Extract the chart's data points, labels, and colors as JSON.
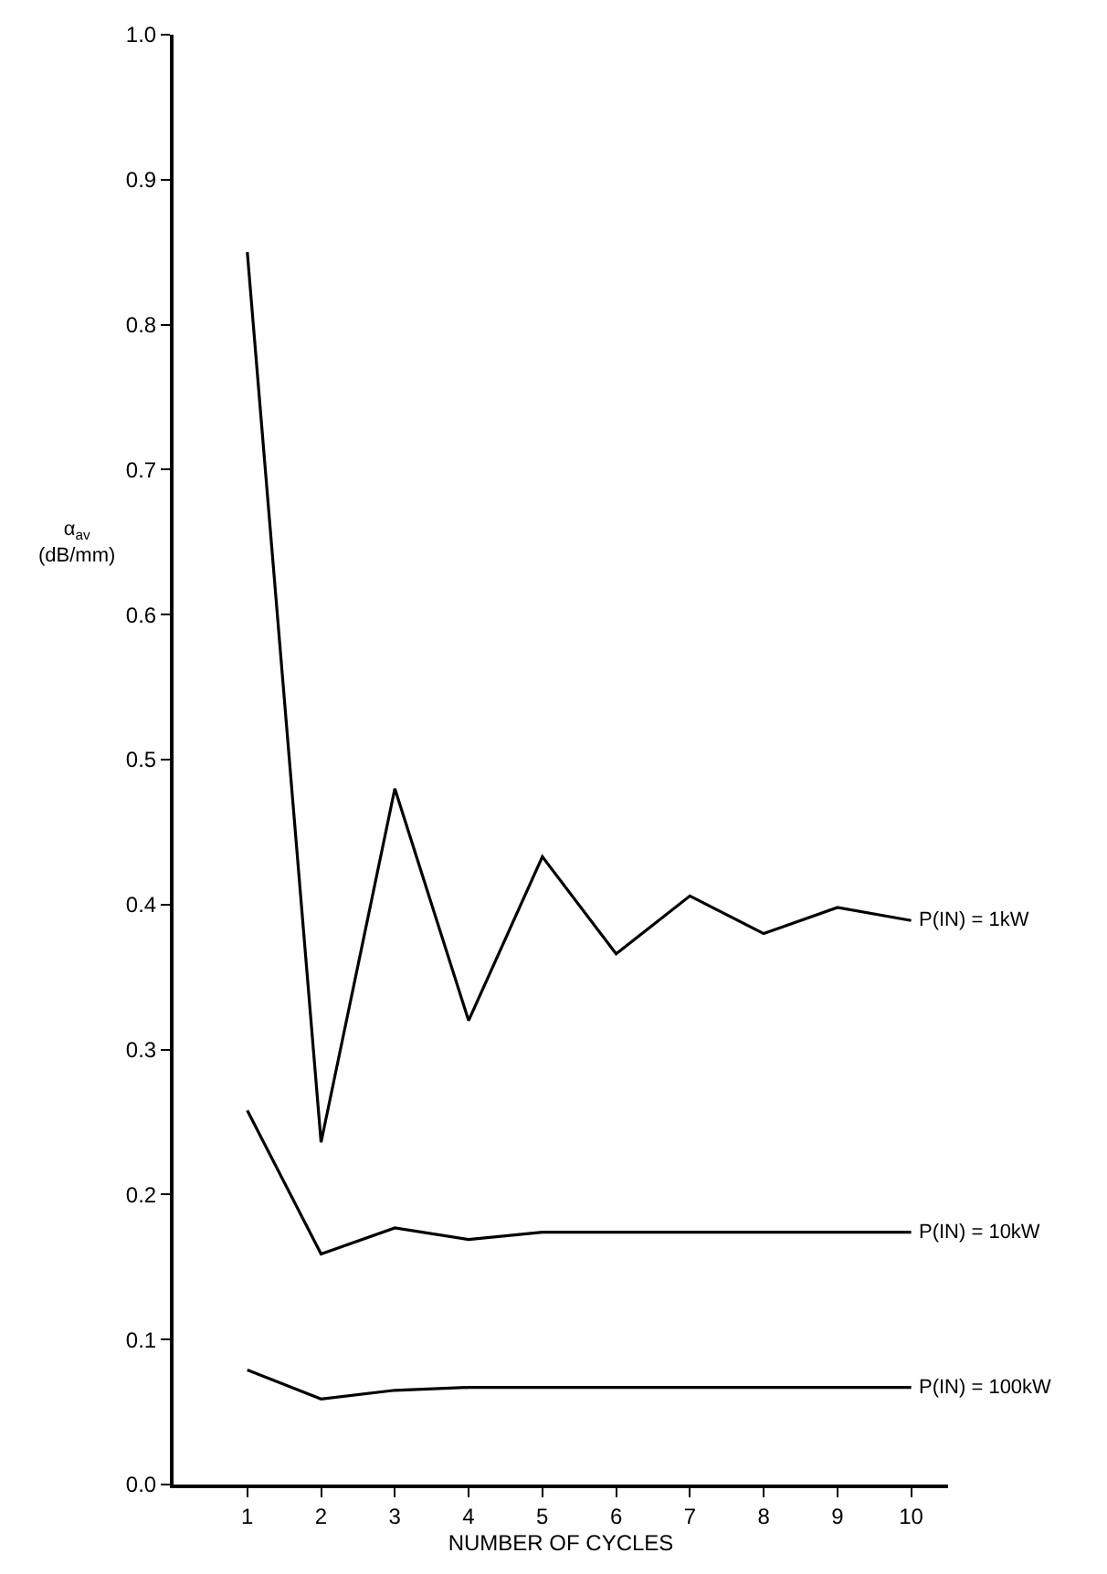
{
  "chart_data": {
    "type": "line",
    "xlabel": "NUMBER OF CYCLES",
    "ylabel": "α$_{av}$\n(dB/mm)",
    "x": [
      1,
      2,
      3,
      4,
      5,
      6,
      7,
      8,
      9,
      10
    ],
    "series": [
      {
        "name": "P(IN) = 1kW",
        "color": "#000000",
        "values": [
          0.85,
          0.236,
          0.48,
          0.32,
          0.433,
          0.366,
          0.406,
          0.38,
          0.398,
          0.389
        ]
      },
      {
        "name": "P(IN) = 10kW",
        "color": "#000000",
        "values": [
          0.258,
          0.159,
          0.177,
          0.169,
          0.174,
          0.174,
          0.174,
          0.174,
          0.174,
          0.174
        ]
      },
      {
        "name": "P(IN) = 100kW",
        "color": "#000000",
        "values": [
          0.079,
          0.059,
          0.065,
          0.067,
          0.067,
          0.067,
          0.067,
          0.067,
          0.067,
          0.067
        ]
      }
    ],
    "xlim": [
      0,
      10.5
    ],
    "ylim": [
      0,
      1.0
    ],
    "xticks": [
      1,
      2,
      3,
      4,
      5,
      6,
      7,
      8,
      9,
      10
    ],
    "yticks": [
      {
        "value": 0,
        "label": "0.0"
      },
      0.1,
      0.2,
      0.3,
      0.4,
      0.5,
      0.6,
      0.7,
      0.8,
      0.9,
      {
        "value": 1.0,
        "label": "1.0"
      }
    ],
    "line_style": "solid"
  }
}
